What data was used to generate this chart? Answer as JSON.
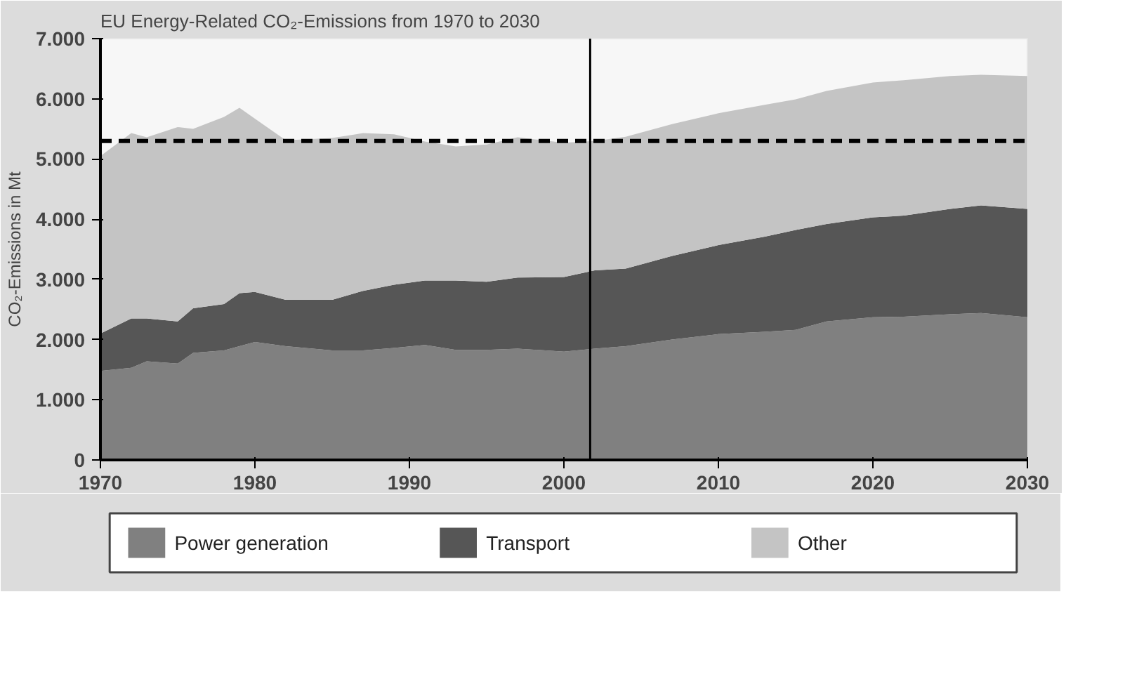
{
  "chart_data": {
    "type": "area",
    "stacked": true,
    "title": "EU Energy-Related CO₂-Emissions from 1970 to 2030",
    "ylabel": "CO₂-Emissions in Mt",
    "x": [
      1970,
      1972,
      1973,
      1975,
      1976,
      1978,
      1979,
      1980,
      1982,
      1985,
      1987,
      1989,
      1991,
      1993,
      1995,
      1997,
      2000,
      2002,
      2004,
      2007,
      2010,
      2013,
      2015,
      2017,
      2020,
      2022,
      2025,
      2027,
      2030
    ],
    "series": [
      {
        "name": "Power generation",
        "color": "#808080",
        "values": [
          1480,
          1530,
          1640,
          1600,
          1780,
          1820,
          1890,
          1960,
          1890,
          1820,
          1820,
          1860,
          1910,
          1830,
          1830,
          1850,
          1800,
          1850,
          1890,
          2000,
          2090,
          2130,
          2160,
          2300,
          2370,
          2380,
          2420,
          2440,
          2370
        ]
      },
      {
        "name": "Transport",
        "color": "#565656",
        "values": [
          620,
          820,
          710,
          700,
          740,
          770,
          880,
          830,
          770,
          840,
          990,
          1050,
          1070,
          1150,
          1130,
          1180,
          1240,
          1300,
          1290,
          1390,
          1480,
          1580,
          1660,
          1620,
          1660,
          1680,
          1750,
          1790,
          1800
        ]
      },
      {
        "name": "Other",
        "color": "#c4c4c4",
        "values": [
          2950,
          3080,
          3010,
          3230,
          2980,
          3110,
          3080,
          2880,
          2650,
          2690,
          2620,
          2500,
          2310,
          2230,
          2280,
          2330,
          2230,
          2150,
          2190,
          2190,
          2190,
          2190,
          2170,
          2210,
          2240,
          2250,
          2210,
          2170,
          2210
        ]
      }
    ],
    "xlim": [
      1970,
      2030
    ],
    "xticks": [
      1970,
      1980,
      1990,
      2000,
      2010,
      2020,
      2030
    ],
    "ylim": [
      0,
      7000
    ],
    "yticks": [
      {
        "value": 0,
        "label": "0"
      },
      {
        "value": 1000,
        "label": "1.000"
      },
      {
        "value": 2000,
        "label": "2.000"
      },
      {
        "value": 3000,
        "label": "3.000"
      },
      {
        "value": 4000,
        "label": "4.000"
      },
      {
        "value": 5000,
        "label": "5.000"
      },
      {
        "value": 6000,
        "label": "6.000"
      },
      {
        "value": 7000,
        "label": "7.000"
      }
    ],
    "ref_lines": [
      {
        "axis": "y",
        "value": 5300,
        "color": "#000000",
        "line_style": "dashed"
      },
      {
        "axis": "x",
        "value": 2001.7,
        "color": "#000000",
        "line_style": "solid"
      }
    ],
    "grid": false,
    "legend": "bottom"
  }
}
